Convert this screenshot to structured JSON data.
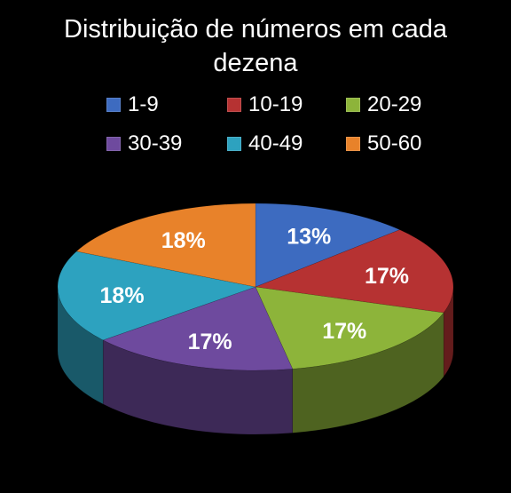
{
  "chart_data": {
    "type": "pie",
    "title": "Distribuição de números em cada dezena",
    "title_lines": [
      "Distribuição de números em cada",
      "dezena"
    ],
    "categories": [
      "1-9",
      "10-19",
      "20-29",
      "30-39",
      "40-49",
      "50-60"
    ],
    "values": [
      13,
      17,
      17,
      17,
      18,
      18
    ],
    "data_labels": [
      "13%",
      "17%",
      "17%",
      "17%",
      "18%",
      "18%"
    ],
    "colors": [
      "#3D6BC0",
      "#B63232",
      "#8DB43A",
      "#6E4A9E",
      "#2DA2BF",
      "#E8822A"
    ],
    "legend_position": "top",
    "style": "3d"
  }
}
